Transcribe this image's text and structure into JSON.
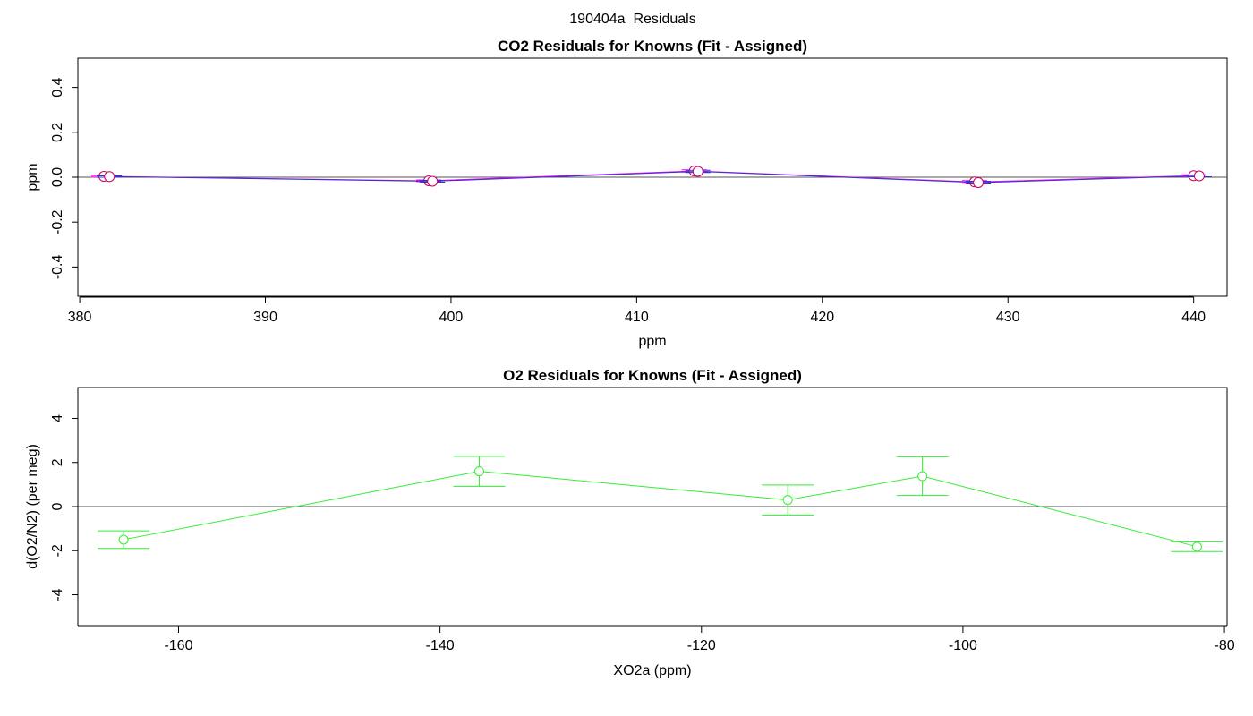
{
  "figure_title": "190404a  Residuals",
  "colors": {
    "co2_series_a": "#ff00ff",
    "co2_series_b": "#3333cc",
    "co2_points": "#cc0066",
    "o2_series": "#33ee33",
    "zero_line": "#555555",
    "axis": "#000000"
  },
  "chart_data": [
    {
      "type": "line",
      "title": "CO2 Residuals for Knowns (Fit - Assigned)",
      "xlabel": "ppm",
      "ylabel": "ppm",
      "xlim": [
        379.9,
        441.8
      ],
      "ylim": [
        -0.53,
        0.53
      ],
      "xticks": [
        380,
        390,
        400,
        410,
        420,
        430,
        440
      ],
      "yticks": [
        -0.4,
        -0.2,
        0.0,
        0.2,
        0.4
      ],
      "ytick_labels": [
        "-0.4",
        "-0.2",
        "0.0",
        "0.2",
        "0.4"
      ],
      "zero_line": true,
      "series": [
        {
          "x": [
            381.3,
            398.8,
            413.1,
            428.2,
            440.0
          ],
          "y": [
            0.004,
            -0.016,
            0.028,
            -0.021,
            0.007
          ],
          "err": [
            0.003,
            0.004,
            0.005,
            0.006,
            0.004
          ]
        },
        {
          "x": [
            381.6,
            399.0,
            413.3,
            428.4,
            440.3
          ],
          "y": [
            0.003,
            -0.018,
            0.026,
            -0.024,
            0.006
          ],
          "err": [
            0.003,
            0.004,
            0.005,
            0.006,
            0.004
          ]
        }
      ]
    },
    {
      "type": "line",
      "title": "O2 Residuals for Knowns (Fit - Assigned)",
      "xlabel": "XO2a (ppm)",
      "ylabel": "d(O2/N2) (per meg)",
      "xlim": [
        -167.7,
        -79.8
      ],
      "ylim": [
        -5.4,
        5.4
      ],
      "xticks": [
        -160,
        -140,
        -120,
        -100,
        -80
      ],
      "yticks": [
        -4,
        -2,
        0,
        2,
        4
      ],
      "zero_line": true,
      "series": [
        {
          "x": [
            -164.2,
            -137.0,
            -113.4,
            -103.1,
            -82.1
          ],
          "y": [
            -1.5,
            1.6,
            0.3,
            1.38,
            -1.82
          ],
          "err": [
            0.4,
            0.68,
            0.68,
            0.88,
            0.22
          ]
        }
      ]
    }
  ]
}
